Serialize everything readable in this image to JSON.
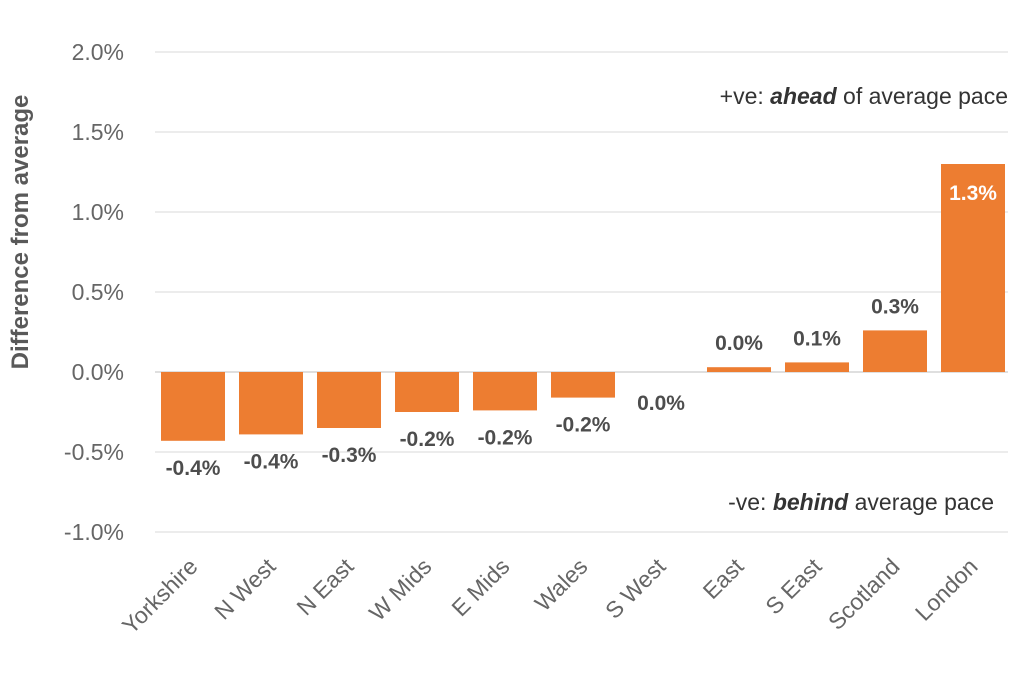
{
  "chart_data": {
    "type": "bar",
    "categories": [
      "Yorkshire",
      "N West",
      "N East",
      "W Mids",
      "E Mids",
      "Wales",
      "S West",
      "East",
      "S East",
      "Scotland",
      "London"
    ],
    "values": [
      -0.43,
      -0.39,
      -0.35,
      -0.25,
      -0.24,
      -0.16,
      0.0,
      0.03,
      0.06,
      0.26,
      1.3
    ],
    "data_labels": [
      "-0.4%",
      "-0.4%",
      "-0.3%",
      "-0.2%",
      "-0.2%",
      "-0.2%",
      "0.0%",
      "0.0%",
      "0.1%",
      "0.3%",
      "1.3%"
    ],
    "ylabel": "Difference from average",
    "ylim": [
      -1.0,
      2.0
    ],
    "yticks": [
      2.0,
      1.5,
      1.0,
      0.5,
      0.0,
      -0.5,
      -1.0
    ],
    "ytick_labels": [
      "2.0%",
      "1.5%",
      "1.0%",
      "0.5%",
      "0.0%",
      "-0.5%",
      "-1.0%"
    ],
    "grid": true,
    "bar_color": "#ED7D31",
    "annotations": {
      "positive": {
        "prefix": "+ve: ",
        "emphasis": "ahead",
        "suffix": " of average pace"
      },
      "negative": {
        "prefix": "-ve: ",
        "emphasis": "behind",
        "suffix": " average pace"
      }
    }
  }
}
